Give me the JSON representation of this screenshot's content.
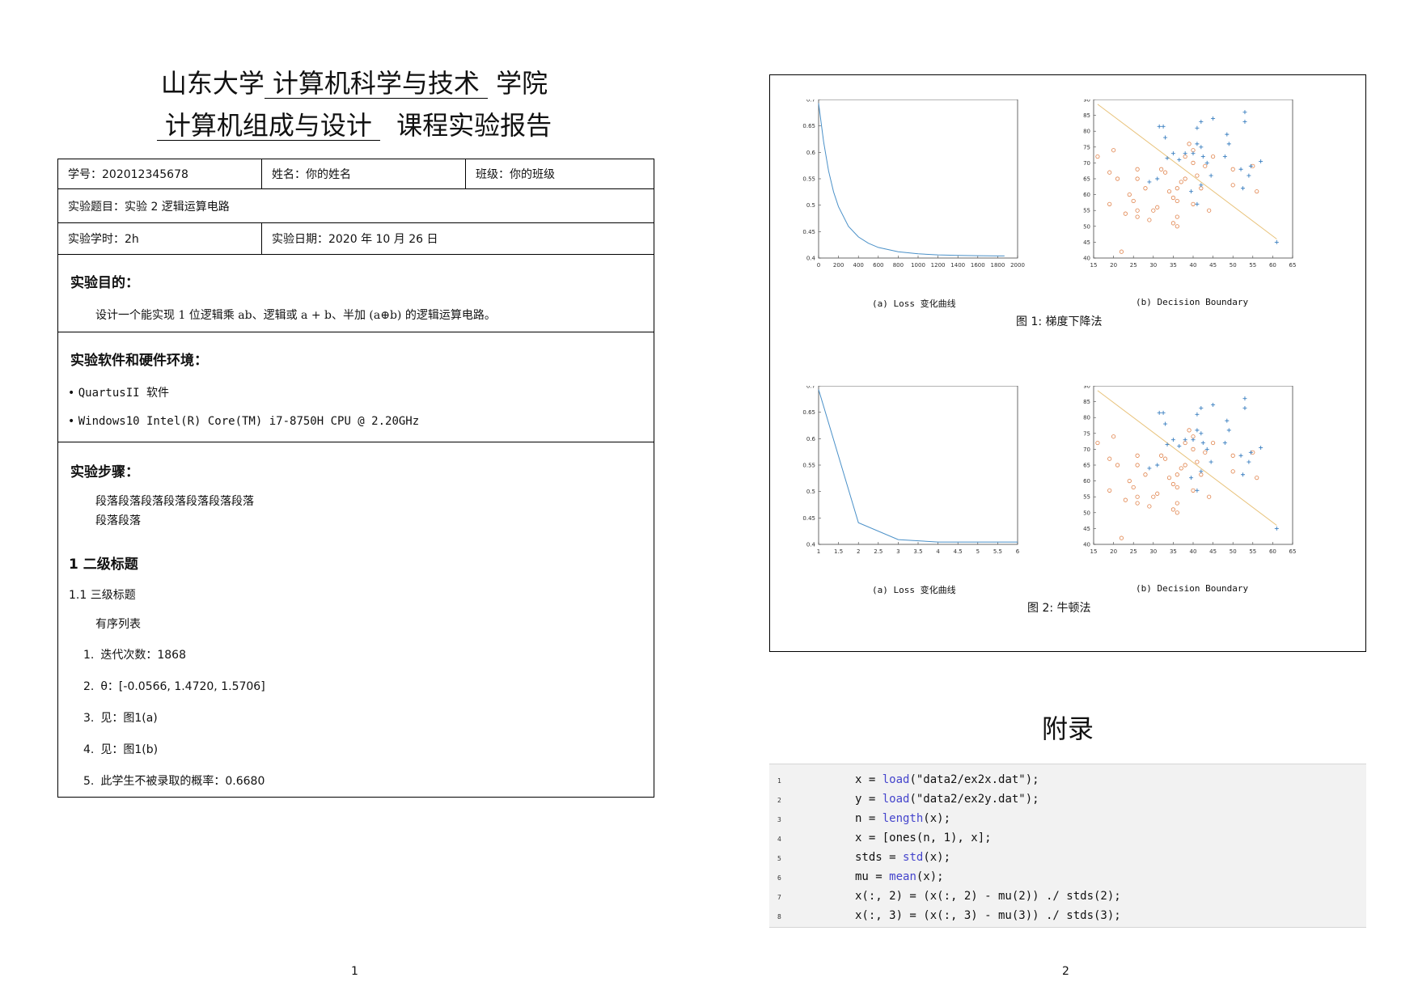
{
  "page1": {
    "title_line1": {
      "prefix": "山东大学",
      "college": "计算机科学与技术",
      "suffix": "学院"
    },
    "title_line2": {
      "course": "计算机组成与设计",
      "suffix": "课程实验报告"
    },
    "info": {
      "student_id": "学号：202012345678",
      "name": "姓名：你的姓名",
      "class": "班级：你的班级",
      "topic": "实验题目：实验 2 逻辑运算电路",
      "hours": "实验学时：2h",
      "date": "实验日期：2020 年 10 月 26 日"
    },
    "purpose": {
      "title": "实验目的：",
      "text": "设计一个能实现 1 位逻辑乘 ab、逻辑或 a + b、半加 (a⊕b) 的逻辑运算电路。"
    },
    "env": {
      "title": "实验软件和硬件环境：",
      "items": [
        "QuartusII 软件",
        "Windows10 Intel(R) Core(TM) i7-8750H CPU @ 2.20GHz"
      ]
    },
    "steps": {
      "title": "实验步骤：",
      "para1": "段落段落段落段落段落段落段落",
      "para2": "段落段落",
      "h2": "1 二级标题",
      "h3": "1.1 三级标题",
      "list_intro": "有序列表",
      "list": [
        {
          "n": "1.",
          "text": "迭代次数：1868"
        },
        {
          "n": "2.",
          "text": "θ：[-0.0566, 1.4720, 1.5706]"
        },
        {
          "n": "3.",
          "text": "见：图1(a)"
        },
        {
          "n": "4.",
          "text": "见：图1(b)"
        },
        {
          "n": "5.",
          "text": "此学生不被录取的概率：0.6680"
        }
      ]
    },
    "page_number": "1"
  },
  "page2": {
    "figures": [
      {
        "sub_a": "(a) Loss 变化曲线",
        "sub_b": "(b) Decision Boundary",
        "caption": "图 1: 梯度下降法"
      },
      {
        "sub_a": "(a) Loss 变化曲线",
        "sub_b": "(b) Decision Boundary",
        "caption": "图 2: 牛顿法"
      }
    ],
    "appendix_title": "附录",
    "code_lines": [
      {
        "n": "1",
        "pre": "x = ",
        "kw": "load",
        "post": "(\"data2/ex2x.dat\");"
      },
      {
        "n": "2",
        "pre": "y = ",
        "kw": "load",
        "post": "(\"data2/ex2y.dat\");"
      },
      {
        "n": "3",
        "pre": "n = ",
        "kw": "length",
        "post": "(x);"
      },
      {
        "n": "4",
        "pre": "x = [ones(n, 1), x];",
        "kw": "",
        "post": ""
      },
      {
        "n": "5",
        "pre": "stds = ",
        "kw": "std",
        "post": "(x);"
      },
      {
        "n": "6",
        "pre": "mu = ",
        "kw": "mean",
        "post": "(x);"
      },
      {
        "n": "7",
        "pre": "x(:, 2) = (x(:, 2) - mu(2)) ./ stds(2);",
        "kw": "",
        "post": ""
      },
      {
        "n": "8",
        "pre": "x(:, 3) = (x(:, 3) - mu(3)) ./ stds(3);",
        "kw": "",
        "post": ""
      }
    ],
    "page_number": "2"
  },
  "chart_data": [
    {
      "type": "line",
      "title": "",
      "x": [
        0,
        50,
        100,
        150,
        200,
        300,
        400,
        500,
        600,
        800,
        1000,
        1200,
        1400,
        1600,
        1800,
        1868
      ],
      "series": [
        {
          "values": [
            0.693,
            0.62,
            0.565,
            0.525,
            0.497,
            0.46,
            0.44,
            0.428,
            0.42,
            0.412,
            0.408,
            0.406,
            0.405,
            0.4045,
            0.404,
            0.404
          ]
        }
      ],
      "xlim": [
        0,
        2000
      ],
      "ylim": [
        0.4,
        0.7
      ],
      "xticks": [
        0,
        200,
        400,
        600,
        800,
        1000,
        1200,
        1400,
        1600,
        1800,
        2000
      ],
      "yticks": [
        0.4,
        0.45,
        0.5,
        0.55,
        0.6,
        0.65,
        0.7
      ],
      "color": "#4a90c8"
    },
    {
      "type": "scatter",
      "title": "",
      "xlim": [
        15,
        65
      ],
      "ylim": [
        40,
        90
      ],
      "xticks": [
        15,
        20,
        25,
        30,
        35,
        40,
        45,
        50,
        55,
        60,
        65
      ],
      "yticks": [
        40,
        45,
        50,
        55,
        60,
        65,
        70,
        75,
        80,
        85,
        90
      ],
      "plus_color": "#3a7fc0",
      "circle_color": "#e0824a",
      "line_color": "#e8c27a",
      "boundary": [
        [
          16,
          88.5
        ],
        [
          61,
          46
        ]
      ],
      "plus": [
        [
          31.5,
          81.5
        ],
        [
          32.5,
          81.5
        ],
        [
          33,
          78
        ],
        [
          41,
          81
        ],
        [
          42,
          83
        ],
        [
          45,
          84
        ],
        [
          48.5,
          79
        ],
        [
          49,
          76
        ],
        [
          53,
          86
        ],
        [
          53,
          83
        ],
        [
          41,
          76
        ],
        [
          42,
          75
        ],
        [
          42.5,
          72
        ],
        [
          40,
          73
        ],
        [
          38,
          73
        ],
        [
          36.5,
          71
        ],
        [
          35,
          73
        ],
        [
          43.5,
          70
        ],
        [
          44.5,
          66
        ],
        [
          48,
          72
        ],
        [
          52,
          68
        ],
        [
          54.5,
          69
        ],
        [
          57,
          70.5
        ],
        [
          54,
          66
        ],
        [
          52.5,
          62
        ],
        [
          42,
          63
        ],
        [
          41,
          57
        ],
        [
          39.5,
          61
        ],
        [
          31,
          65
        ],
        [
          33.5,
          71.5
        ],
        [
          61,
          45
        ],
        [
          29,
          64
        ]
      ],
      "circle": [
        [
          16,
          72
        ],
        [
          19,
          67
        ],
        [
          21,
          65
        ],
        [
          20,
          74
        ],
        [
          19,
          57
        ],
        [
          23,
          54
        ],
        [
          24,
          60
        ],
        [
          26,
          55
        ],
        [
          26,
          53
        ],
        [
          25,
          58
        ],
        [
          26,
          68
        ],
        [
          26,
          65
        ],
        [
          28,
          62
        ],
        [
          29,
          52
        ],
        [
          30,
          55
        ],
        [
          31,
          56
        ],
        [
          32,
          68
        ],
        [
          33,
          67
        ],
        [
          34,
          61
        ],
        [
          35,
          59
        ],
        [
          35,
          51
        ],
        [
          36,
          50
        ],
        [
          36,
          53
        ],
        [
          37,
          64
        ],
        [
          38,
          65
        ],
        [
          36,
          62
        ],
        [
          39,
          76
        ],
        [
          40,
          74
        ],
        [
          40,
          70
        ],
        [
          41,
          66
        ],
        [
          42,
          62
        ],
        [
          40,
          57
        ],
        [
          44,
          55
        ],
        [
          43,
          69
        ],
        [
          45,
          72
        ],
        [
          36,
          58
        ],
        [
          50,
          63
        ],
        [
          50,
          68
        ],
        [
          55,
          69
        ],
        [
          56,
          61
        ],
        [
          22,
          42
        ],
        [
          38,
          72
        ]
      ]
    },
    {
      "type": "line",
      "title": "",
      "x": [
        1,
        2,
        3,
        4,
        5,
        6
      ],
      "series": [
        {
          "values": [
            0.693,
            0.441,
            0.409,
            0.4045,
            0.4045,
            0.4045
          ]
        }
      ],
      "xlim": [
        1,
        6
      ],
      "ylim": [
        0.4,
        0.7
      ],
      "xticks": [
        1,
        1.5,
        2,
        2.5,
        3,
        3.5,
        4,
        4.5,
        5,
        5.5,
        6
      ],
      "yticks": [
        0.4,
        0.45,
        0.5,
        0.55,
        0.6,
        0.65,
        0.7
      ],
      "color": "#4a90c8"
    },
    {
      "type": "scatter",
      "title": "",
      "xlim": [
        15,
        65
      ],
      "ylim": [
        40,
        90
      ],
      "xticks": [
        15,
        20,
        25,
        30,
        35,
        40,
        45,
        50,
        55,
        60,
        65
      ],
      "yticks": [
        40,
        45,
        50,
        55,
        60,
        65,
        70,
        75,
        80,
        85,
        90
      ],
      "plus_color": "#3a7fc0",
      "circle_color": "#e0824a",
      "line_color": "#e8c27a",
      "boundary": [
        [
          16,
          88.5
        ],
        [
          61,
          46
        ]
      ],
      "plus": [
        [
          31.5,
          81.5
        ],
        [
          32.5,
          81.5
        ],
        [
          33,
          78
        ],
        [
          41,
          81
        ],
        [
          42,
          83
        ],
        [
          45,
          84
        ],
        [
          48.5,
          79
        ],
        [
          49,
          76
        ],
        [
          53,
          86
        ],
        [
          53,
          83
        ],
        [
          41,
          76
        ],
        [
          42,
          75
        ],
        [
          42.5,
          72
        ],
        [
          40,
          73
        ],
        [
          38,
          73
        ],
        [
          36.5,
          71
        ],
        [
          35,
          73
        ],
        [
          43.5,
          70
        ],
        [
          44.5,
          66
        ],
        [
          48,
          72
        ],
        [
          52,
          68
        ],
        [
          54.5,
          69
        ],
        [
          57,
          70.5
        ],
        [
          54,
          66
        ],
        [
          52.5,
          62
        ],
        [
          42,
          63
        ],
        [
          41,
          57
        ],
        [
          39.5,
          61
        ],
        [
          31,
          65
        ],
        [
          33.5,
          71.5
        ],
        [
          61,
          45
        ],
        [
          29,
          64
        ]
      ],
      "circle": [
        [
          16,
          72
        ],
        [
          19,
          67
        ],
        [
          21,
          65
        ],
        [
          20,
          74
        ],
        [
          19,
          57
        ],
        [
          23,
          54
        ],
        [
          24,
          60
        ],
        [
          26,
          55
        ],
        [
          26,
          53
        ],
        [
          25,
          58
        ],
        [
          26,
          68
        ],
        [
          26,
          65
        ],
        [
          28,
          62
        ],
        [
          29,
          52
        ],
        [
          30,
          55
        ],
        [
          31,
          56
        ],
        [
          32,
          68
        ],
        [
          33,
          67
        ],
        [
          34,
          61
        ],
        [
          35,
          59
        ],
        [
          35,
          51
        ],
        [
          36,
          50
        ],
        [
          36,
          53
        ],
        [
          37,
          64
        ],
        [
          38,
          65
        ],
        [
          36,
          62
        ],
        [
          39,
          76
        ],
        [
          40,
          74
        ],
        [
          40,
          70
        ],
        [
          41,
          66
        ],
        [
          42,
          62
        ],
        [
          40,
          57
        ],
        [
          44,
          55
        ],
        [
          43,
          69
        ],
        [
          45,
          72
        ],
        [
          36,
          58
        ],
        [
          50,
          63
        ],
        [
          50,
          68
        ],
        [
          55,
          69
        ],
        [
          56,
          61
        ],
        [
          22,
          42
        ],
        [
          38,
          72
        ]
      ]
    }
  ]
}
